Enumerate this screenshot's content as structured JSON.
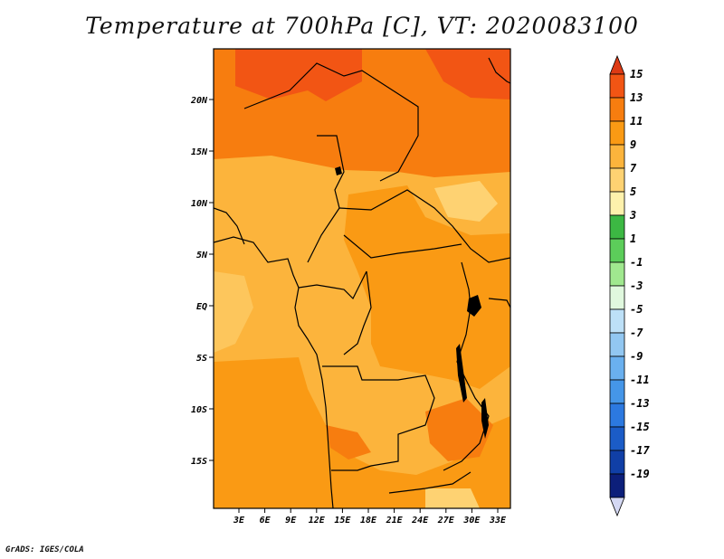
{
  "map": {
    "title": "Temperature at 700hPa [C], VT: 2020083100",
    "variable": "Temperature",
    "level": "700hPa",
    "units": "C",
    "valid_time": "2020083100",
    "lat_labels": [
      "20N",
      "15N",
      "10N",
      "5N",
      "EQ",
      "5S",
      "10S",
      "15S"
    ],
    "lon_labels": [
      "3E",
      "6E",
      "9E",
      "12E",
      "15E",
      "18E",
      "21E",
      "24E",
      "27E",
      "30E",
      "33E"
    ]
  },
  "colorbar": {
    "labels": [
      "15",
      "13",
      "11",
      "9",
      "7",
      "5",
      "3",
      "1",
      "-1",
      "-3",
      "-5",
      "-7",
      "-9",
      "-11",
      "-13",
      "-15",
      "-17",
      "-19"
    ],
    "colors": [
      "#dd3a14",
      "#f25514",
      "#f77d0f",
      "#fa9a14",
      "#fcb43c",
      "#fed272",
      "#fef1ac",
      "#3cb843",
      "#5ccd5a",
      "#a0e88f",
      "#e0f8de",
      "#bde0f7",
      "#92c7f1",
      "#6ab0ef",
      "#4596e8",
      "#2c79e0",
      "#1b5cc7",
      "#103fa6",
      "#0c1f7a",
      "#d4d8f3"
    ]
  },
  "footer": {
    "credit": "GrADS: IGES/COLA"
  }
}
